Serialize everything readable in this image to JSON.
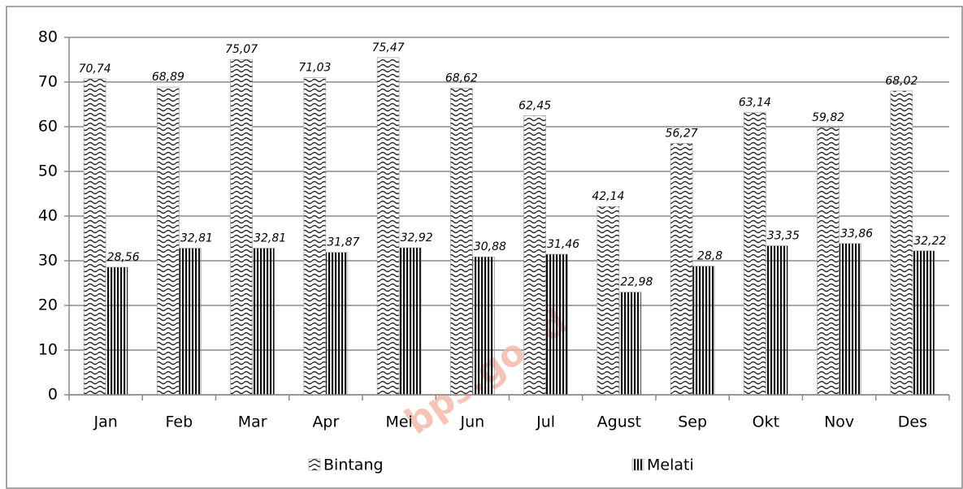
{
  "chart_data": {
    "type": "bar",
    "categories": [
      "Jan",
      "Feb",
      "Mar",
      "Apr",
      "Mei",
      "Jun",
      "Jul",
      "Agust",
      "Sep",
      "Okt",
      "Nov",
      "Des"
    ],
    "series": [
      {
        "name": "Bintang",
        "color": "#222222",
        "pattern": "wave",
        "values": [
          70.74,
          68.89,
          75.07,
          71.03,
          75.47,
          68.62,
          62.45,
          42.14,
          56.27,
          63.14,
          59.82,
          68.02
        ],
        "value_labels": [
          "70,74",
          "68,89",
          "75,07",
          "71,03",
          "75,47",
          "68,62",
          "62,45",
          "42,14",
          "56,27",
          "63,14",
          "59,82",
          "68,02"
        ]
      },
      {
        "name": "Melati",
        "color": "#111111",
        "pattern": "vertical",
        "values": [
          28.56,
          32.81,
          32.81,
          31.87,
          32.92,
          30.88,
          31.46,
          22.98,
          28.8,
          33.35,
          33.86,
          32.22
        ],
        "value_labels": [
          "28,56",
          "32,81",
          "32,81",
          "31,87",
          "32,92",
          "30,88",
          "31,46",
          "22,98",
          "28,8",
          "33,35",
          "33,86",
          "32,22"
        ]
      }
    ],
    "ylim": [
      0,
      80
    ],
    "yticks": [
      0,
      10,
      20,
      30,
      40,
      50,
      60,
      70,
      80
    ],
    "grid": true,
    "legend": "bottom",
    "watermark": "bps.go.id"
  }
}
